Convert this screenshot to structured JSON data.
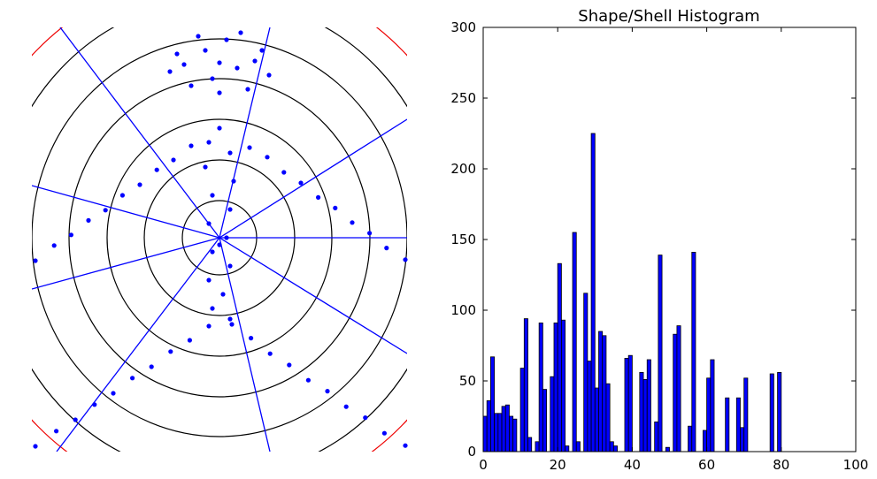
{
  "chart_data": [
    {
      "type": "scatter",
      "color": "#0000ff",
      "xlim": [
        -5.3,
        5.3
      ],
      "ylim": [
        -6.05,
        5.95
      ],
      "x": [
        0,
        -1.2,
        1.2,
        -1.4,
        1.4,
        -0.6,
        0.6,
        -0.8,
        0.8,
        0,
        -0.4,
        0.5,
        -1.0,
        1.0,
        0.2,
        -0.2,
        0,
        -0.3,
        0.3,
        -0.4,
        0.4,
        -0.2,
        0.3,
        -0.3,
        0.2,
        -0.2,
        0.3,
        -0.3,
        0.1,
        -0.2,
        0.3,
        0,
        -0.8,
        -1.3,
        -1.77,
        -2.25,
        -2.74,
        -3.22,
        -3.7,
        -4.19,
        -4.67,
        -5.2,
        0.85,
        1.35,
        1.82,
        2.3,
        2.79,
        3.27,
        3.75,
        4.24,
        4.72,
        5.25,
        -0.3,
        -0.84,
        -1.38,
        -1.92,
        -2.46,
        -3.0,
        -3.53,
        -4.07,
        -4.61,
        -5.2,
        0.35,
        0.89,
        1.43,
        1.97,
        2.51,
        3.05,
        3.58,
        4.12,
        4.66,
        5.25
      ],
      "values": [
        4.95,
        5.2,
        5.3,
        4.7,
        4.6,
        5.7,
        5.8,
        4.3,
        4.2,
        4.1,
        5.3,
        4.8,
        4.9,
        5.0,
        5.6,
        4.5,
        3.1,
        2.7,
        2.4,
        2.0,
        1.6,
        1.2,
        0.8,
        0.4,
        0,
        -0.4,
        -0.8,
        -1.2,
        -1.6,
        -2.0,
        -2.3,
        -0.2,
        2.6,
        2.2,
        1.92,
        1.5,
        1.2,
        0.78,
        0.49,
        0.08,
        -0.22,
        -0.65,
        2.55,
        2.28,
        1.85,
        1.55,
        1.14,
        0.84,
        0.43,
        0.13,
        -0.29,
        -0.62,
        -2.5,
        -2.9,
        -3.22,
        -3.65,
        -3.97,
        -4.4,
        -4.72,
        -5.15,
        -5.47,
        -5.9,
        -2.45,
        -2.84,
        -3.28,
        -3.6,
        -4.03,
        -4.34,
        -4.78,
        -5.09,
        -5.53,
        -5.88
      ]
    },
    {
      "type": "histogram",
      "title": "Shape/Shell Histogram",
      "color": "#0000ff",
      "bins": [
        0,
        1,
        2,
        3,
        4,
        5,
        6,
        7,
        8,
        9,
        10,
        11,
        12,
        13,
        14,
        15,
        16,
        17,
        18,
        19,
        20,
        21,
        22,
        23,
        24,
        25,
        26,
        27,
        28,
        29,
        30,
        31,
        32,
        33,
        34,
        35,
        36,
        37,
        38,
        39,
        40,
        41,
        42,
        43,
        44,
        45,
        46,
        47,
        48,
        49,
        50,
        51,
        52,
        53,
        54,
        55,
        56,
        57,
        58,
        59,
        60,
        61,
        62,
        63,
        64,
        65,
        66,
        67,
        68,
        69,
        70,
        71,
        72,
        73,
        74,
        75,
        76,
        77,
        78,
        79,
        80,
        81,
        82,
        83,
        84,
        85,
        86,
        87,
        88,
        89,
        90,
        91,
        92,
        93,
        94,
        95,
        96,
        97,
        98,
        99,
        100
      ],
      "values": [
        25,
        36,
        67,
        27,
        27,
        32,
        33,
        25,
        23,
        0,
        59,
        94,
        10,
        0,
        7,
        91,
        44,
        0,
        53,
        91,
        133,
        93,
        4,
        0,
        155,
        7,
        0,
        112,
        64,
        225,
        45,
        85,
        82,
        48,
        7,
        4,
        0,
        0,
        66,
        68,
        0,
        0,
        56,
        51,
        65,
        0,
        21,
        139,
        0,
        3,
        0,
        83,
        89,
        0,
        0,
        18,
        141,
        0,
        0,
        15,
        52,
        65,
        0,
        0,
        0,
        38,
        0,
        0,
        38,
        17,
        52,
        0,
        0,
        0,
        0,
        0,
        0,
        55,
        0,
        56,
        0,
        0,
        0,
        0,
        0,
        0,
        0,
        0,
        0,
        0,
        0,
        0,
        0,
        0,
        0,
        0,
        0,
        0,
        0,
        0
      ],
      "xlim": [
        0,
        100
      ],
      "ylim": [
        0,
        300
      ],
      "xticks": [
        0,
        20,
        40,
        60,
        80,
        100
      ],
      "yticks": [
        0,
        50,
        100,
        150,
        200,
        250,
        300
      ]
    }
  ]
}
